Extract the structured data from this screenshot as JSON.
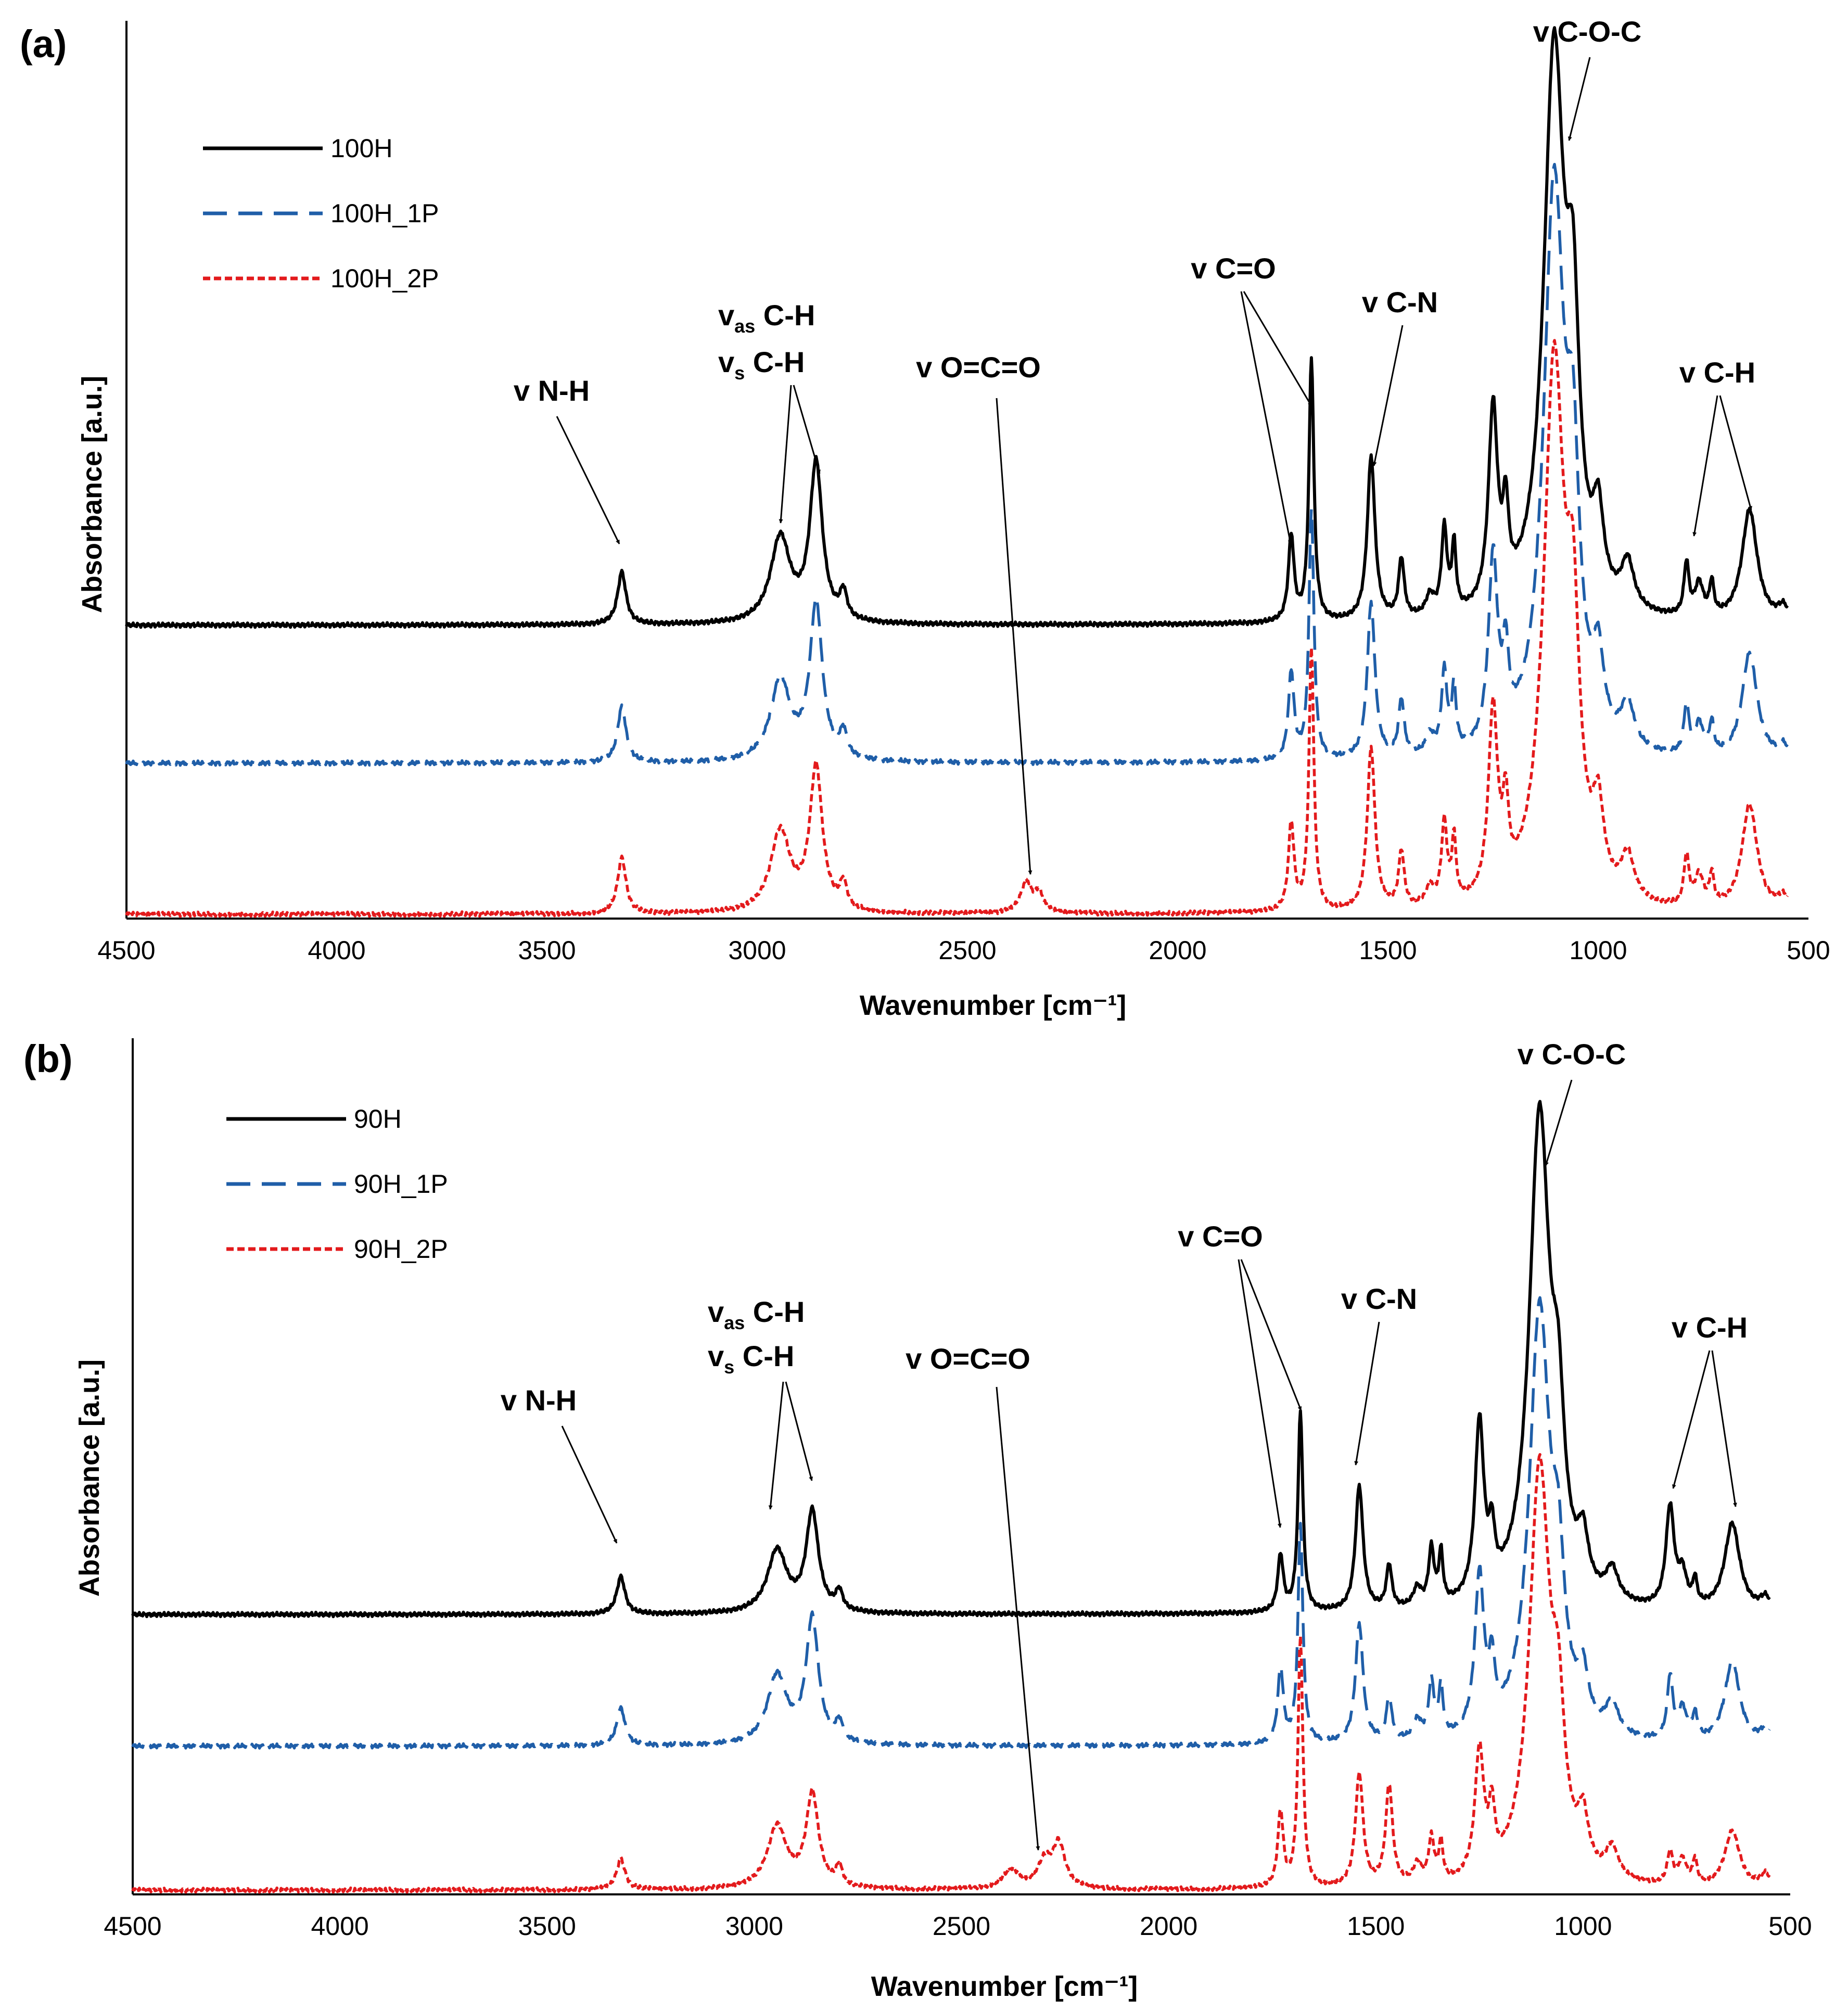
{
  "chart_data": [
    {
      "panel": "(a)",
      "type": "line",
      "xlabel": "Wavenumber [cm⁻¹]",
      "ylabel": "Absorbance [a.u.]",
      "xlim": [
        4500,
        500
      ],
      "xticks": [
        "4500",
        "4000",
        "3500",
        "3000",
        "2500",
        "2000",
        "1500",
        "1000",
        "500"
      ],
      "legend": "top-left",
      "series": [
        {
          "name": "100H",
          "style": "solid",
          "color": "#000000",
          "baseline": 0.44,
          "scale": 1.0,
          "peaks": [
            [
              3322,
              0.08,
              12
            ],
            [
              2945,
              0.13,
              28
            ],
            [
              2860,
              0.24,
              18
            ],
            [
              2795,
              0.04,
              10
            ],
            [
              1730,
              0.13,
              8
            ],
            [
              1682,
              0.4,
              7
            ],
            [
              1540,
              0.25,
              11
            ],
            [
              1468,
              0.09,
              8
            ],
            [
              1400,
              0.03,
              12
            ],
            [
              1366,
              0.13,
              8
            ],
            [
              1343,
              0.1,
              6
            ],
            [
              1250,
              0.3,
              13
            ],
            [
              1220,
              0.12,
              8
            ],
            [
              1105,
              0.85,
              30
            ],
            [
              1060,
              0.35,
              18
            ],
            [
              1000,
              0.12,
              15
            ],
            [
              930,
              0.07,
              18
            ],
            [
              790,
              0.08,
              7
            ],
            [
              760,
              0.05,
              12
            ],
            [
              730,
              0.05,
              6
            ],
            [
              640,
              0.17,
              22
            ],
            [
              560,
              0.02,
              15
            ]
          ],
          "v_noise": 0.01
        },
        {
          "name": "100H_1P",
          "style": "dashed",
          "color": "#1f5ea8",
          "baseline": 0.23,
          "scale": 0.95,
          "peaks": [
            [
              3322,
              0.09,
              12
            ],
            [
              2945,
              0.13,
              28
            ],
            [
              2860,
              0.25,
              18
            ],
            [
              2795,
              0.04,
              10
            ],
            [
              1730,
              0.14,
              8
            ],
            [
              1682,
              0.4,
              7
            ],
            [
              1540,
              0.25,
              11
            ],
            [
              1468,
              0.09,
              8
            ],
            [
              1400,
              0.03,
              12
            ],
            [
              1366,
              0.13,
              8
            ],
            [
              1343,
              0.1,
              6
            ],
            [
              1250,
              0.3,
              13
            ],
            [
              1220,
              0.12,
              8
            ],
            [
              1105,
              0.9,
              30
            ],
            [
              1060,
              0.35,
              18
            ],
            [
              1000,
              0.12,
              15
            ],
            [
              930,
              0.07,
              18
            ],
            [
              790,
              0.08,
              7
            ],
            [
              760,
              0.05,
              12
            ],
            [
              730,
              0.05,
              6
            ],
            [
              640,
              0.17,
              22
            ],
            [
              560,
              0.02,
              15
            ]
          ],
          "v_noise": 0.01
        },
        {
          "name": "100H_2P",
          "style": "dotted",
          "color": "#e31a1c",
          "baseline": 0.0,
          "scale": 0.95,
          "peaks": [
            [
              3322,
              0.09,
              12
            ],
            [
              2945,
              0.13,
              28
            ],
            [
              2860,
              0.23,
              18
            ],
            [
              2795,
              0.04,
              10
            ],
            [
              2360,
              0.05,
              16
            ],
            [
              2330,
              0.03,
              12
            ],
            [
              1730,
              0.14,
              8
            ],
            [
              1682,
              0.42,
              7
            ],
            [
              1540,
              0.26,
              11
            ],
            [
              1468,
              0.09,
              8
            ],
            [
              1400,
              0.03,
              12
            ],
            [
              1366,
              0.13,
              8
            ],
            [
              1343,
              0.1,
              6
            ],
            [
              1250,
              0.3,
              13
            ],
            [
              1220,
              0.12,
              8
            ],
            [
              1105,
              0.86,
              30
            ],
            [
              1060,
              0.35,
              18
            ],
            [
              1000,
              0.12,
              15
            ],
            [
              930,
              0.07,
              18
            ],
            [
              790,
              0.08,
              7
            ],
            [
              760,
              0.05,
              12
            ],
            [
              730,
              0.05,
              6
            ],
            [
              640,
              0.17,
              22
            ],
            [
              560,
              0.02,
              15
            ]
          ],
          "v_noise": 0.01
        }
      ],
      "annotations": [
        {
          "text": "v N-H",
          "targets": [
            3322
          ]
        },
        {
          "text": "vas C-H / vs C-H",
          "targets": [
            2950,
            2860
          ]
        },
        {
          "text": "v O=C=O",
          "targets": [
            2360
          ]
        },
        {
          "text": "v C=O",
          "targets": [
            1730,
            1682
          ]
        },
        {
          "text": "v C-N",
          "targets": [
            1540
          ]
        },
        {
          "text": "v C-O-C",
          "targets": [
            1105
          ]
        },
        {
          "text": "v C-H",
          "targets": [
            790,
            640
          ]
        }
      ]
    },
    {
      "panel": "(b)",
      "type": "line",
      "xlabel": "Wavenumber [cm⁻¹]",
      "ylabel": "Absorbance [a.u.]",
      "xlim": [
        4500,
        500
      ],
      "xticks": [
        "4500",
        "4000",
        "3500",
        "3000",
        "2500",
        "2000",
        "1500",
        "1000",
        "500"
      ],
      "legend": "top-left",
      "series": [
        {
          "name": "90H",
          "style": "solid",
          "color": "#000000",
          "baseline": 0.44,
          "scale": 1.0,
          "peaks": [
            [
              3322,
              0.06,
              12
            ],
            [
              2945,
              0.1,
              28
            ],
            [
              2860,
              0.16,
              18
            ],
            [
              2795,
              0.03,
              10
            ],
            [
              1730,
              0.09,
              8
            ],
            [
              1682,
              0.32,
              7
            ],
            [
              1540,
              0.2,
              11
            ],
            [
              1468,
              0.07,
              8
            ],
            [
              1400,
              0.03,
              12
            ],
            [
              1366,
              0.09,
              8
            ],
            [
              1343,
              0.08,
              6
            ],
            [
              1250,
              0.28,
              13
            ],
            [
              1220,
              0.08,
              8
            ],
            [
              1105,
              0.78,
              30
            ],
            [
              1060,
              0.22,
              18
            ],
            [
              1000,
              0.08,
              15
            ],
            [
              930,
              0.05,
              18
            ],
            [
              790,
              0.16,
              12
            ],
            [
              760,
              0.05,
              12
            ],
            [
              730,
              0.04,
              6
            ],
            [
              640,
              0.14,
              22
            ],
            [
              560,
              0.02,
              15
            ]
          ],
          "v_noise": 0.01
        },
        {
          "name": "90H_1P",
          "style": "dashed",
          "color": "#1f5ea8",
          "baseline": 0.23,
          "scale": 1.0,
          "peaks": [
            [
              3322,
              0.06,
              12
            ],
            [
              2945,
              0.11,
              28
            ],
            [
              2860,
              0.2,
              18
            ],
            [
              2795,
              0.03,
              10
            ],
            [
              1730,
              0.12,
              8
            ],
            [
              1682,
              0.35,
              7
            ],
            [
              1540,
              0.19,
              11
            ],
            [
              1468,
              0.07,
              8
            ],
            [
              1400,
              0.03,
              12
            ],
            [
              1366,
              0.09,
              8
            ],
            [
              1343,
              0.08,
              6
            ],
            [
              1250,
              0.25,
              13
            ],
            [
              1220,
              0.09,
              8
            ],
            [
              1105,
              0.68,
              30
            ],
            [
              1060,
              0.2,
              18
            ],
            [
              1000,
              0.08,
              15
            ],
            [
              930,
              0.05,
              18
            ],
            [
              790,
              0.1,
              8
            ],
            [
              760,
              0.05,
              12
            ],
            [
              730,
              0.04,
              6
            ],
            [
              640,
              0.13,
              22
            ],
            [
              560,
              0.02,
              15
            ]
          ],
          "v_noise": 0.01
        },
        {
          "name": "90H_2P",
          "style": "dotted",
          "color": "#e31a1c",
          "baseline": 0.0,
          "scale": 1.0,
          "peaks": [
            [
              3322,
              0.05,
              12
            ],
            [
              2945,
              0.1,
              28
            ],
            [
              2860,
              0.15,
              18
            ],
            [
              2795,
              0.03,
              10
            ],
            [
              2380,
              0.03,
              25
            ],
            [
              2300,
              0.04,
              20
            ],
            [
              2265,
              0.07,
              18
            ],
            [
              1730,
              0.12,
              8
            ],
            [
              1682,
              0.4,
              7
            ],
            [
              1540,
              0.18,
              11
            ],
            [
              1468,
              0.16,
              10
            ],
            [
              1400,
              0.03,
              12
            ],
            [
              1366,
              0.07,
              8
            ],
            [
              1343,
              0.06,
              6
            ],
            [
              1250,
              0.2,
              13
            ],
            [
              1220,
              0.09,
              8
            ],
            [
              1105,
              0.66,
              30
            ],
            [
              1060,
              0.2,
              18
            ],
            [
              1000,
              0.08,
              15
            ],
            [
              930,
              0.05,
              18
            ],
            [
              790,
              0.05,
              8
            ],
            [
              760,
              0.04,
              12
            ],
            [
              730,
              0.04,
              6
            ],
            [
              640,
              0.09,
              22
            ],
            [
              560,
              0.02,
              15
            ]
          ],
          "v_noise": 0.01
        }
      ],
      "annotations": [
        {
          "text": "v N-H",
          "targets": [
            3322
          ]
        },
        {
          "text": "vas C-H / vs C-H",
          "targets": [
            2950,
            2860
          ]
        },
        {
          "text": "v O=C=O",
          "targets": [
            2265
          ]
        },
        {
          "text": "v C=O",
          "targets": [
            1730,
            1682
          ]
        },
        {
          "text": "v C-N",
          "targets": [
            1540
          ]
        },
        {
          "text": "v C-O-C",
          "targets": [
            1105
          ]
        },
        {
          "text": "v C-H",
          "targets": [
            790,
            640
          ]
        }
      ]
    }
  ],
  "labels": {
    "v": "v",
    "as": "as",
    "s": "s",
    "ch": "C-H",
    "nh": "N-H",
    "oco": "O=C=O",
    "co": "C=O",
    "cn": "C-N",
    "coc": "C-O-C",
    "space": " "
  }
}
